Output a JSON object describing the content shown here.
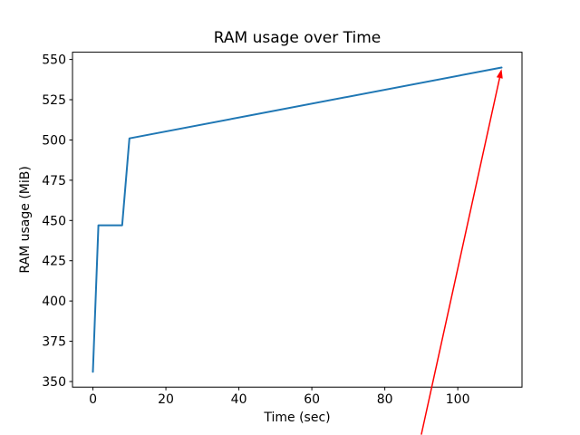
{
  "chart_data": {
    "type": "line",
    "title": "RAM usage over Time",
    "xlabel": "Time (sec)",
    "ylabel": "RAM usage (MiB)",
    "x": [
      0,
      1.5,
      8,
      10,
      112
    ],
    "y": [
      356,
      447,
      447,
      501,
      545
    ],
    "xticks": [
      0,
      20,
      40,
      60,
      80,
      100
    ],
    "yticks": [
      350,
      375,
      400,
      425,
      450,
      475,
      500,
      525,
      550
    ],
    "xlim": [
      -5.6,
      117.6
    ],
    "ylim": [
      346.5,
      554.5
    ],
    "grid": false,
    "legend": null,
    "line_color": "#1f77b4",
    "axes_color": "#000000",
    "annotation_arrow": {
      "color": "#ff0000",
      "from_xy": [
        90,
        317
      ],
      "to_xy": [
        112,
        544
      ]
    }
  }
}
